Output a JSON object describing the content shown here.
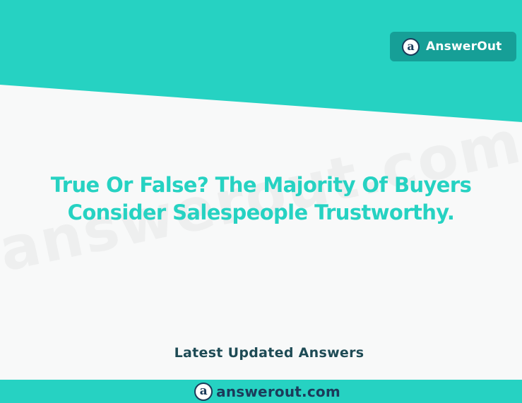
{
  "header": {
    "brand_logo_letter": "a",
    "brand_name": "AnswerOut"
  },
  "watermark": {
    "text": "answerout.com"
  },
  "main": {
    "question_line1": "True Or False? The Majority Of Buyers",
    "question_line2": "Consider Salespeople Trustworthy.",
    "latest_label": "Latest Updated Answers"
  },
  "footer": {
    "logo_letter": "a",
    "domain": "answerout.com"
  },
  "colors": {
    "teal": "#26d2c2",
    "badge": "#169f97",
    "navy": "#1b3b5a",
    "background": "#f8f9f9"
  }
}
